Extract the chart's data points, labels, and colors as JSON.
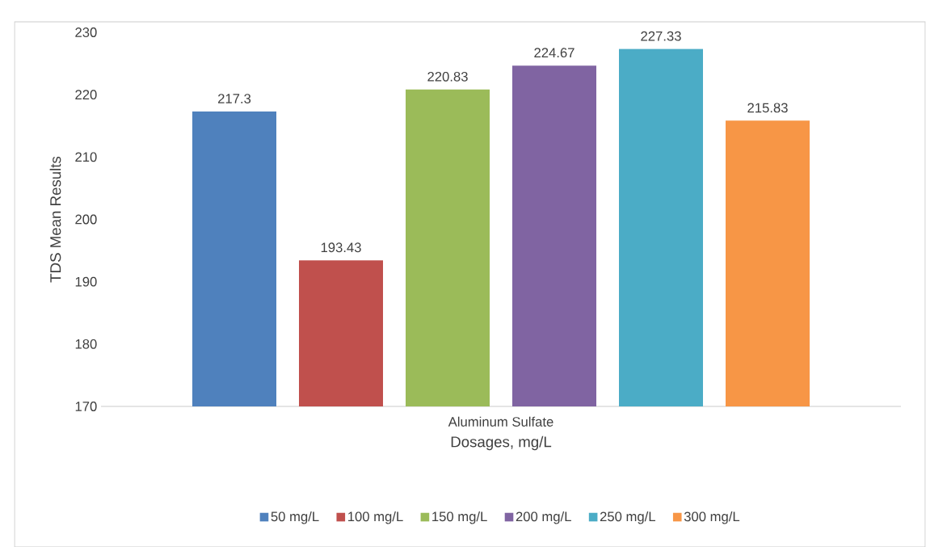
{
  "chart_data": {
    "type": "bar",
    "xlabel": "Dosages, mg/L",
    "ylabel": "TDS Mean Results",
    "categories": [
      "Aluminum Sulfate"
    ],
    "series": [
      {
        "name": "50 mg/L",
        "color": "#4f81bd",
        "values": [
          217.3
        ]
      },
      {
        "name": "100 mg/L",
        "color": "#c0504d",
        "values": [
          193.43
        ]
      },
      {
        "name": "150 mg/L",
        "color": "#9bbb59",
        "values": [
          220.83
        ]
      },
      {
        "name": "200 mg/L",
        "color": "#8064a2",
        "values": [
          224.67
        ]
      },
      {
        "name": "250 mg/L",
        "color": "#4bacc6",
        "values": [
          227.33
        ]
      },
      {
        "name": "300 mg/L",
        "color": "#f79646",
        "values": [
          215.83
        ]
      }
    ],
    "ylim": [
      170,
      230
    ],
    "yticks": [
      170,
      180,
      190,
      200,
      210,
      220,
      230
    ],
    "data_labels": true,
    "legend": "bottom",
    "grid": false
  }
}
